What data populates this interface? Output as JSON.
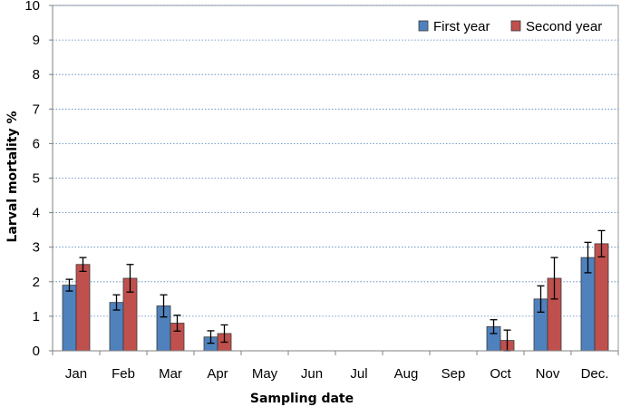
{
  "chart_data": {
    "type": "bar",
    "title": "",
    "xlabel": "Sampling date",
    "ylabel": "Larval mortality %",
    "ylim": [
      0,
      10
    ],
    "yticks": [
      0,
      1,
      2,
      3,
      4,
      5,
      6,
      7,
      8,
      9,
      10
    ],
    "grid": true,
    "legend": "top-right",
    "categories": [
      "Jan",
      "Feb",
      "Mar",
      "Apr",
      "May",
      "Jun",
      "Jul",
      "Aug",
      "Sep",
      "Oct",
      "Nov",
      "Dec."
    ],
    "series": [
      {
        "name": "First year",
        "color": "#4f81bd",
        "values": [
          1.9,
          1.4,
          1.3,
          0.4,
          0,
          0,
          0,
          0,
          0,
          0.7,
          1.5,
          2.7
        ],
        "errors": [
          0.17,
          0.22,
          0.32,
          0.18,
          0,
          0,
          0,
          0,
          0,
          0.2,
          0.38,
          0.44
        ]
      },
      {
        "name": "Second year",
        "color": "#c0504d",
        "values": [
          2.5,
          2.1,
          0.8,
          0.5,
          0,
          0,
          0,
          0,
          0,
          0.3,
          2.1,
          3.1
        ],
        "errors": [
          0.2,
          0.4,
          0.23,
          0.25,
          0,
          0,
          0,
          0,
          0,
          0.3,
          0.6,
          0.38
        ]
      }
    ]
  }
}
